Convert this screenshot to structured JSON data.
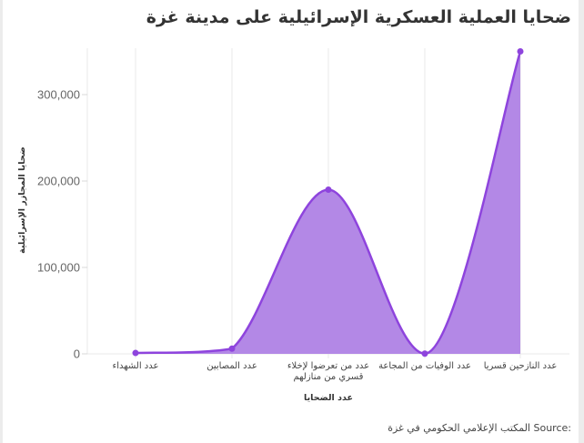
{
  "title": "ضحايا العملية العسكرية الإسرائيلية على مدينة غزة",
  "source_label": "Source:",
  "source_text": "المكتب الإعلامي الحكومي في غزة",
  "colors": {
    "fill": "#b388e6",
    "line": "#8e44dd",
    "grid": "#e8e8e8"
  },
  "chart_data": {
    "type": "area",
    "title": "ضحايا العملية العسكرية الإسرائيلية على مدينة غزة",
    "xlabel": "عدد الضحايا",
    "ylabel": "ضحايا المجازر الإسرائيلية",
    "categories": [
      "عدد الشهداء",
      "عدد المصابين",
      "عدد من تعرضوا لإخلاء قسري من منازلهم",
      "عدد الوفيات من المجاعة",
      "عدد النازحين قسريا"
    ],
    "category_lines": [
      [
        "عدد الشهداء"
      ],
      [
        "عدد المصابين"
      ],
      [
        "عدد من تعرضوا لإخلاء",
        "قسري من منازلهم"
      ],
      [
        "عدد الوفيات من المجاعة"
      ],
      [
        "عدد النازحين قسريا"
      ]
    ],
    "values": [
      1000,
      6000,
      190000,
      300,
      350000
    ],
    "yticks": [
      0,
      100000,
      200000,
      300000
    ],
    "ytick_labels": [
      "0",
      "100,000",
      "200,000",
      "300,000"
    ],
    "ylim": [
      0,
      355000
    ],
    "grid": {
      "vertical": true,
      "horizontal": false
    },
    "smooth": true,
    "legend": null
  }
}
